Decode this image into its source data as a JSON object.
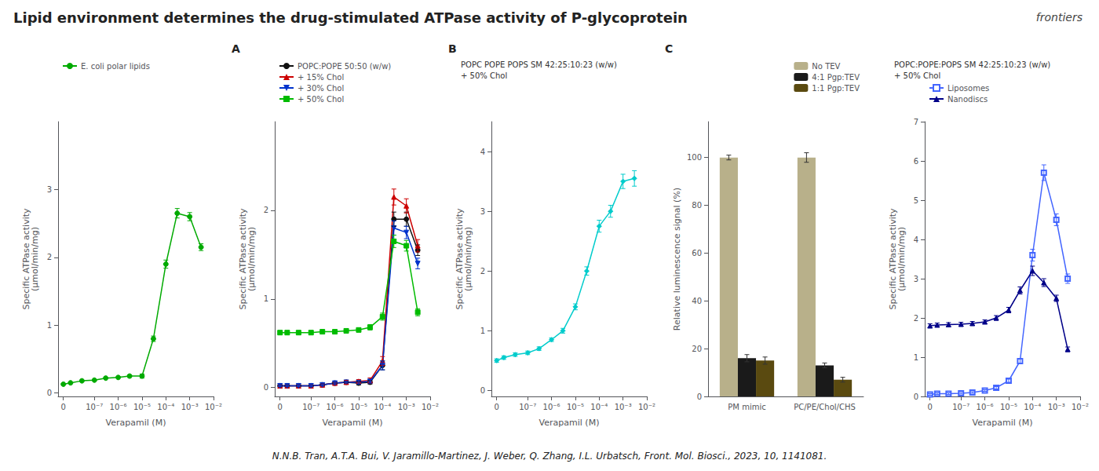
{
  "title": "Lipid environment determines the drug-stimulated ATPase activity of P-glycoprotein",
  "annotations": [
    "N.N.B. Tran, A.T.A. Bui, V. Jaramillo-Martinez, J. Weber, Q. Zhang, I.L. Urbatsch, Front. Mol. Biosci., 2023, 10, 1141081.",
    "frontiers"
  ],
  "chart_data": [
    {
      "type": "line",
      "log": "x",
      "xlabel": "Verapamil (M)",
      "ylabel": "Specific ATPase activity\n(µmol/min/mg)",
      "x": [
        5e-09,
        1e-08,
        3e-08,
        1e-07,
        3e-07,
        1e-06,
        3e-06,
        1e-05,
        3e-05,
        0.0001,
        0.0003,
        0.001,
        0.003
      ],
      "xlim": [
        3e-09,
        0.01
      ],
      "xticks": [
        {
          "value": 5e-09,
          "label": "0"
        },
        {
          "value": 1e-07,
          "label": "10⁻⁷"
        },
        {
          "value": 1e-06,
          "label": "10⁻⁶"
        },
        {
          "value": 1e-05,
          "label": "10⁻⁵"
        },
        {
          "value": 0.0001,
          "label": "10⁻⁴"
        },
        {
          "value": 0.001,
          "label": "10⁻³"
        },
        {
          "value": 0.01,
          "label": "10⁻²"
        }
      ],
      "ylim": [
        -0.05,
        4
      ],
      "yticks": [
        0,
        1,
        2,
        3
      ],
      "grid": false,
      "legend": "upper left",
      "series": [
        {
          "name": "E. coli polar lipids",
          "color": "#00aa00",
          "marker": "circle",
          "values": [
            0.13,
            0.15,
            0.18,
            0.19,
            0.22,
            0.23,
            0.25,
            0.25,
            0.8,
            1.9,
            2.65,
            2.6,
            2.15
          ],
          "errors": [
            0.01,
            0.01,
            0.01,
            0.01,
            0.01,
            0.01,
            0.02,
            0.03,
            0.04,
            0.06,
            0.07,
            0.06,
            0.05
          ]
        }
      ]
    },
    {
      "type": "line",
      "log": "x",
      "title": "A",
      "xlabel": "Verapamil (M)",
      "ylabel": "Specific ATPase activity\n(µmol/min/mg)",
      "x": [
        5e-09,
        1e-08,
        3e-08,
        1e-07,
        3e-07,
        1e-06,
        3e-06,
        1e-05,
        3e-05,
        0.0001,
        0.0003,
        0.001,
        0.003
      ],
      "xlim": [
        3e-09,
        0.01
      ],
      "xticks": [
        {
          "value": 5e-09,
          "label": "0"
        },
        {
          "value": 1e-07,
          "label": "10⁻⁷"
        },
        {
          "value": 1e-06,
          "label": "10⁻⁶"
        },
        {
          "value": 1e-05,
          "label": "10⁻⁵"
        },
        {
          "value": 0.0001,
          "label": "10⁻⁴"
        },
        {
          "value": 0.001,
          "label": "10⁻³"
        },
        {
          "value": 0.01,
          "label": "10⁻²"
        }
      ],
      "ylim": [
        -0.1,
        3
      ],
      "yticks": [
        0,
        1,
        2
      ],
      "grid": false,
      "legend": "upper left",
      "series": [
        {
          "name": "POPC:POPE 50:50 (w/w)",
          "color": "#111111",
          "marker": "circle",
          "values": [
            0.02,
            0.02,
            0.02,
            0.02,
            0.03,
            0.05,
            0.06,
            0.05,
            0.06,
            0.25,
            1.9,
            1.9,
            1.55
          ],
          "errors": [
            0.01,
            0.01,
            0.01,
            0.01,
            0.01,
            0.01,
            0.01,
            0.02,
            0.02,
            0.05,
            0.08,
            0.08,
            0.06
          ]
        },
        {
          "name": "+ 15% Chol",
          "color": "#cc0000",
          "marker": "triangle-up",
          "values": [
            0.02,
            0.02,
            0.02,
            0.02,
            0.03,
            0.05,
            0.06,
            0.07,
            0.08,
            0.3,
            2.15,
            2.05,
            1.6
          ],
          "errors": [
            0.01,
            0.01,
            0.01,
            0.01,
            0.01,
            0.01,
            0.02,
            0.02,
            0.03,
            0.05,
            0.09,
            0.08,
            0.07
          ]
        },
        {
          "name": "+ 30% Chol",
          "color": "#0033cc",
          "marker": "triangle-down",
          "values": [
            0.02,
            0.02,
            0.02,
            0.02,
            0.03,
            0.05,
            0.06,
            0.06,
            0.07,
            0.25,
            1.8,
            1.75,
            1.4
          ],
          "errors": [
            0.01,
            0.01,
            0.01,
            0.01,
            0.01,
            0.01,
            0.01,
            0.02,
            0.02,
            0.05,
            0.08,
            0.07,
            0.06
          ]
        },
        {
          "name": "+ 50% Chol",
          "color": "#00bb00",
          "marker": "square",
          "values": [
            0.62,
            0.62,
            0.62,
            0.62,
            0.63,
            0.63,
            0.64,
            0.65,
            0.68,
            0.8,
            1.65,
            1.6,
            0.85
          ],
          "errors": [
            0.02,
            0.02,
            0.02,
            0.02,
            0.02,
            0.02,
            0.02,
            0.02,
            0.03,
            0.04,
            0.07,
            0.06,
            0.04
          ]
        }
      ]
    },
    {
      "type": "line",
      "log": "x",
      "title": "B",
      "annotations": [
        "POPC POPE POPS SM 42:25:10:23 (w/w)",
        "+ 50% Chol"
      ],
      "xlabel": "Verapamil (M)",
      "ylabel": "Specific ATPase activity\n(µmol/min/mg)",
      "x": [
        5e-09,
        1e-08,
        3e-08,
        1e-07,
        3e-07,
        1e-06,
        3e-06,
        1e-05,
        3e-05,
        0.0001,
        0.0003,
        0.001,
        0.003
      ],
      "xlim": [
        3e-09,
        0.01
      ],
      "xticks": [
        {
          "value": 5e-09,
          "label": "0"
        },
        {
          "value": 1e-07,
          "label": "10⁻⁷"
        },
        {
          "value": 1e-06,
          "label": "10⁻⁶"
        },
        {
          "value": 1e-05,
          "label": "10⁻⁵"
        },
        {
          "value": 0.0001,
          "label": "10⁻⁴"
        },
        {
          "value": 0.001,
          "label": "10⁻³"
        },
        {
          "value": 0.01,
          "label": "10⁻²"
        }
      ],
      "ylim": [
        -0.1,
        4.5
      ],
      "yticks": [
        0,
        1,
        2,
        3,
        4
      ],
      "grid": false,
      "series": [
        {
          "color": "#00cccc",
          "marker": "diamond",
          "values": [
            0.5,
            0.55,
            0.6,
            0.63,
            0.7,
            0.85,
            1.0,
            1.4,
            2.0,
            2.75,
            3.0,
            3.5,
            3.55
          ],
          "errors": [
            0.03,
            0.03,
            0.03,
            0.03,
            0.03,
            0.03,
            0.04,
            0.05,
            0.07,
            0.1,
            0.1,
            0.12,
            0.13
          ]
        }
      ]
    },
    {
      "type": "bar",
      "title": "C",
      "categories": [
        "PM mimic",
        "PC/PE/Chol/CHS"
      ],
      "ylabel": "Relative luminescence signal (%)",
      "ylim": [
        0,
        115
      ],
      "yticks": [
        0,
        20,
        40,
        60,
        80,
        100
      ],
      "grid": false,
      "legend": "upper right",
      "series": [
        {
          "name": "No TEV",
          "color": "#b8b08a",
          "values": [
            100,
            100
          ],
          "errors": [
            1.0,
            2.0
          ]
        },
        {
          "name": "4:1 Pgp:TEV",
          "color": "#1a1a1a",
          "values": [
            16,
            13
          ],
          "errors": [
            1.5,
            1.0
          ]
        },
        {
          "name": "1:1 Pgp:TEV",
          "color": "#5a4a10",
          "values": [
            15,
            7
          ],
          "errors": [
            1.5,
            1.0
          ]
        }
      ]
    },
    {
      "type": "line",
      "log": "x",
      "annotations": [
        "POPC:POPE:POPS SM 42:25:10:23 (w/w)",
        "+ 50% Chol"
      ],
      "xlabel": "Verapamil (M)",
      "ylabel": "Specific ATPase activity\n(µmol/min/mg)",
      "x": [
        5e-09,
        1e-08,
        3e-08,
        1e-07,
        3e-07,
        1e-06,
        3e-06,
        1e-05,
        3e-05,
        0.0001,
        0.0003,
        0.001,
        0.003
      ],
      "xlim": [
        3e-09,
        0.01
      ],
      "xticks": [
        {
          "value": 5e-09,
          "label": "0"
        },
        {
          "value": 1e-07,
          "label": "10⁻⁷"
        },
        {
          "value": 1e-06,
          "label": "10⁻⁶"
        },
        {
          "value": 1e-05,
          "label": "10⁻⁵"
        },
        {
          "value": 0.0001,
          "label": "10⁻⁴"
        },
        {
          "value": 0.001,
          "label": "10⁻³"
        },
        {
          "value": 0.01,
          "label": "10⁻²"
        }
      ],
      "ylim": [
        0,
        7
      ],
      "yticks": [
        0,
        1,
        2,
        3,
        4,
        5,
        6,
        7
      ],
      "grid": false,
      "legend": "upper left",
      "series": [
        {
          "name": "Liposomes",
          "color": "#4466ff",
          "marker": "open-square",
          "values": [
            0.05,
            0.07,
            0.07,
            0.08,
            0.1,
            0.15,
            0.22,
            0.4,
            0.9,
            3.6,
            5.7,
            4.5,
            3.0
          ],
          "errors": [
            0.02,
            0.02,
            0.02,
            0.02,
            0.02,
            0.02,
            0.03,
            0.04,
            0.06,
            0.15,
            0.2,
            0.15,
            0.12
          ]
        },
        {
          "name": "Nanodiscs",
          "color": "#000088",
          "marker": "triangle-up",
          "values": [
            1.8,
            1.82,
            1.83,
            1.84,
            1.86,
            1.9,
            2.0,
            2.2,
            2.7,
            3.2,
            2.9,
            2.5,
            1.2
          ],
          "errors": [
            0.05,
            0.05,
            0.05,
            0.05,
            0.05,
            0.05,
            0.06,
            0.07,
            0.09,
            0.12,
            0.1,
            0.08,
            0.06
          ]
        }
      ]
    }
  ]
}
